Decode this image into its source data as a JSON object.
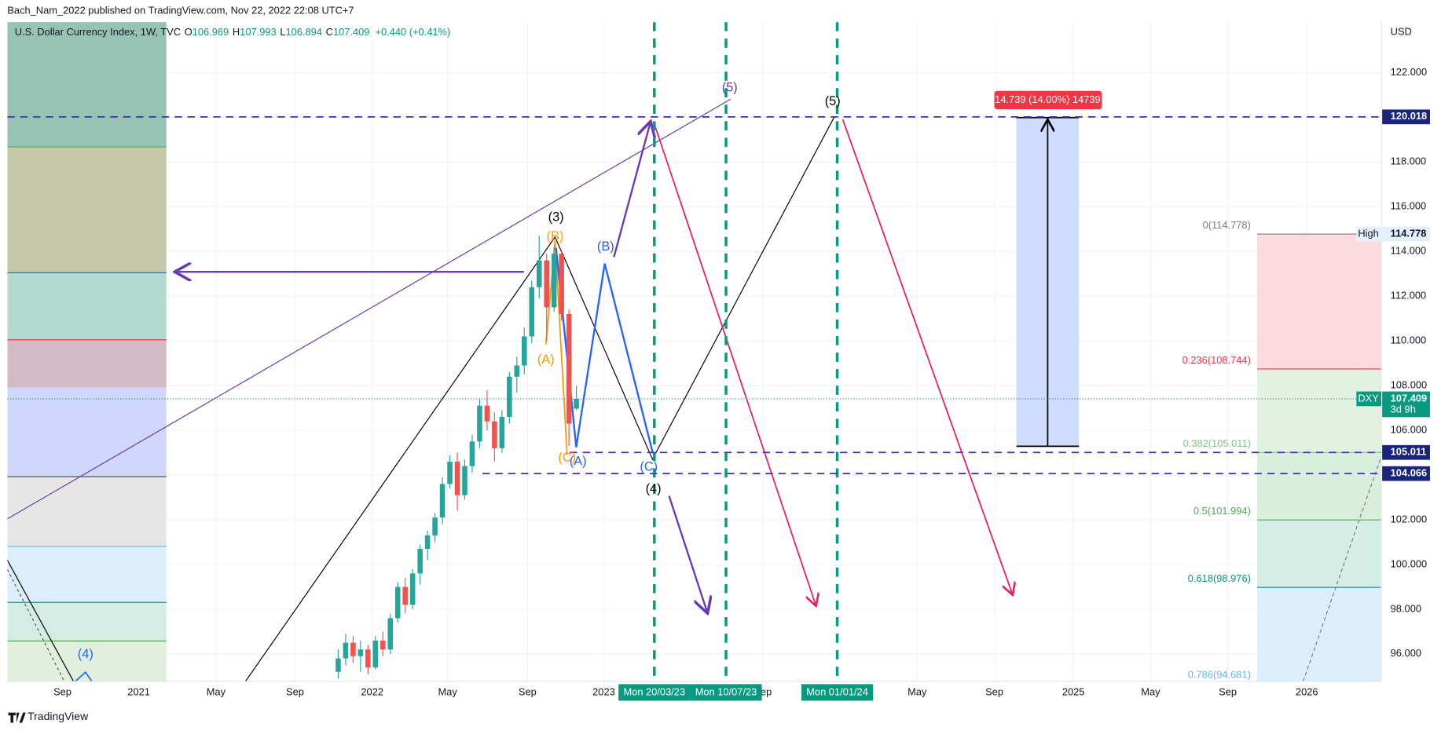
{
  "header": {
    "published": "Bach_Nam_2022 published on TradingView.com, Nov 22, 2022 22:08 UTC+7"
  },
  "legend": {
    "symbol": "U.S. Dollar Currency Index, 1W, TVC",
    "ohlc": [
      {
        "key": "O",
        "value": 106.969
      },
      {
        "key": "H",
        "value": 107.993
      },
      {
        "key": "L",
        "value": 106.894
      },
      {
        "key": "C",
        "value": 107.409
      }
    ],
    "change": "+0.440 (+0.41%)"
  },
  "price_axis": {
    "currency": "USD",
    "ticks": [
      {
        "value": 96,
        "label": "96.000"
      },
      {
        "value": 98,
        "label": "98.000"
      },
      {
        "value": 100,
        "label": "100.000"
      },
      {
        "value": 102,
        "label": "102.000"
      },
      {
        "value": 104,
        "label": "104.000"
      },
      {
        "value": 106,
        "label": "106.000"
      },
      {
        "value": 108,
        "label": "108.000"
      },
      {
        "value": 110,
        "label": "110.000"
      },
      {
        "value": 112,
        "label": "112.000"
      },
      {
        "value": 114,
        "label": "114.000"
      },
      {
        "value": 116,
        "label": "116.000"
      },
      {
        "value": 118,
        "label": "118.000"
      },
      {
        "value": 120,
        "label": "120.000"
      },
      {
        "value": 122,
        "label": "122.000"
      }
    ]
  },
  "price_tags": [
    {
      "value": 120.018,
      "label": "120.018"
    },
    {
      "value": 114.778,
      "label": "114.778",
      "tag": "High"
    },
    {
      "value": 107.409,
      "label": "107.409",
      "tag": "DXY",
      "sub": "3d 9h"
    },
    {
      "value": 105.011,
      "label": "105.011"
    },
    {
      "value": 104.066,
      "label": "104.066"
    }
  ],
  "time_axis": {
    "labels": [
      "Sep",
      "2021",
      "May",
      "Sep",
      "2022",
      "May",
      "Sep",
      "2023",
      "Sep",
      "May",
      "Sep",
      "2025",
      "May",
      "Sep",
      "2026"
    ]
  },
  "date_markers": [
    "Mon 20/03/23",
    "Mon 10/07/23",
    "Mon 01/01/24"
  ],
  "candles": [
    [
      95.2,
      96.2,
      94.9,
      95.8
    ],
    [
      95.8,
      96.9,
      95.5,
      96.5
    ],
    [
      96.5,
      96.8,
      95.6,
      95.9
    ],
    [
      95.9,
      96.6,
      95.2,
      96.2
    ],
    [
      96.2,
      96.4,
      95.1,
      95.4
    ],
    [
      95.4,
      96.8,
      95.3,
      96.6
    ],
    [
      96.6,
      97.0,
      95.9,
      96.2
    ],
    [
      96.2,
      97.8,
      96.0,
      97.6
    ],
    [
      97.6,
      99.2,
      97.4,
      99.0
    ],
    [
      99.0,
      99.4,
      97.8,
      98.2
    ],
    [
      98.2,
      99.8,
      98.0,
      99.6
    ],
    [
      99.6,
      100.9,
      99.1,
      100.7
    ],
    [
      100.7,
      101.5,
      100.2,
      101.3
    ],
    [
      101.3,
      102.3,
      101.0,
      102.1
    ],
    [
      102.1,
      103.9,
      101.8,
      103.6
    ],
    [
      103.6,
      104.9,
      103.4,
      104.6
    ],
    [
      104.6,
      105.0,
      102.4,
      103.1
    ],
    [
      103.1,
      104.7,
      102.9,
      104.4
    ],
    [
      104.4,
      105.8,
      104.1,
      105.5
    ],
    [
      105.5,
      107.4,
      105.2,
      107.1
    ],
    [
      107.1,
      107.8,
      106.0,
      106.4
    ],
    [
      106.4,
      106.8,
      104.6,
      105.2
    ],
    [
      105.2,
      106.9,
      105.0,
      106.6
    ],
    [
      106.6,
      108.6,
      106.3,
      108.4
    ],
    [
      108.4,
      109.3,
      107.7,
      108.9
    ],
    [
      108.9,
      110.6,
      108.5,
      110.2
    ],
    [
      110.2,
      112.7,
      109.9,
      112.4
    ],
    [
      112.4,
      114.7,
      111.9,
      113.6
    ],
    [
      113.6,
      113.9,
      110.0,
      111.5
    ],
    [
      111.5,
      114.2,
      111.3,
      113.9
    ],
    [
      113.9,
      114.0,
      110.9,
      111.2
    ],
    [
      111.2,
      111.4,
      105.3,
      106.3
    ]
  ],
  "fib_levels": [
    {
      "label": "0(114.778)",
      "value": 114.778
    },
    {
      "label": "0.236(108.744)",
      "value": 108.744
    },
    {
      "label": "0.382(105.011)",
      "value": 105.011
    },
    {
      "label": "0.5(101.994)",
      "value": 101.994
    },
    {
      "label": "0.618(98.976)",
      "value": 98.976
    },
    {
      "label": "0.786(94.681)",
      "value": 94.681
    }
  ],
  "measure": {
    "label": "14.739 (14.00%) 14739"
  },
  "wave_labels": [
    "(5)",
    "(5)",
    "(3)",
    "(B)",
    "(B)",
    "(A)",
    "(C)",
    "(A)",
    "(C)",
    "(4)",
    "(4)"
  ],
  "footer": {
    "brand": "TradingView"
  }
}
